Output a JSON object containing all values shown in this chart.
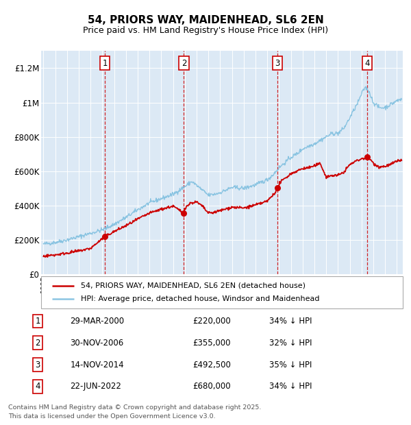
{
  "title": "54, PRIORS WAY, MAIDENHEAD, SL6 2EN",
  "subtitle": "Price paid vs. HM Land Registry's House Price Index (HPI)",
  "background_color": "#dce9f5",
  "hpi_color": "#7fbfdf",
  "price_color": "#cc0000",
  "vline_color": "#cc0000",
  "purchases": [
    {
      "label": "1",
      "date_str": "29-MAR-2000",
      "year": 2000.23,
      "price": 220000,
      "pct": "34% ↓ HPI"
    },
    {
      "label": "2",
      "date_str": "30-NOV-2006",
      "year": 2006.92,
      "price": 355000,
      "pct": "32% ↓ HPI"
    },
    {
      "label": "3",
      "date_str": "14-NOV-2014",
      "year": 2014.87,
      "price": 492500,
      "pct": "35% ↓ HPI"
    },
    {
      "label": "4",
      "date_str": "22-JUN-2022",
      "year": 2022.47,
      "price": 680000,
      "pct": "34% ↓ HPI"
    }
  ],
  "footer1": "Contains HM Land Registry data © Crown copyright and database right 2025.",
  "footer2": "This data is licensed under the Open Government Licence v3.0.",
  "legend_line1": "54, PRIORS WAY, MAIDENHEAD, SL6 2EN (detached house)",
  "legend_line2": "HPI: Average price, detached house, Windsor and Maidenhead",
  "ylim": [
    0,
    1300000
  ],
  "yticks": [
    0,
    200000,
    400000,
    600000,
    800000,
    1000000,
    1200000
  ],
  "ytick_labels": [
    "£0",
    "£200K",
    "£400K",
    "£600K",
    "£800K",
    "£1M",
    "£1.2M"
  ],
  "xmin": 1994.8,
  "xmax": 2025.5,
  "hpi_knots_x": [
    1995,
    1996,
    1997,
    1998,
    1999,
    2000,
    2001,
    2002,
    2003,
    2004,
    2005,
    2006,
    2007,
    2007.6,
    2008.3,
    2009.0,
    2009.5,
    2010,
    2010.5,
    2011,
    2012,
    2013,
    2014,
    2014.5,
    2015,
    2015.5,
    2016,
    2016.5,
    2017,
    2017.5,
    2018,
    2018.5,
    2019,
    2019.5,
    2020,
    2020.5,
    2021,
    2021.3,
    2021.7,
    2022.0,
    2022.3,
    2022.6,
    2023.0,
    2023.5,
    2024.0,
    2024.5,
    2025.0,
    2025.4
  ],
  "hpi_knots_y": [
    175000,
    185000,
    200000,
    218000,
    238000,
    258000,
    290000,
    330000,
    375000,
    415000,
    440000,
    465000,
    510000,
    540000,
    500000,
    460000,
    465000,
    475000,
    490000,
    505000,
    500000,
    520000,
    550000,
    580000,
    620000,
    650000,
    680000,
    700000,
    730000,
    745000,
    760000,
    780000,
    800000,
    820000,
    820000,
    850000,
    910000,
    950000,
    1000000,
    1050000,
    1090000,
    1070000,
    1000000,
    970000,
    970000,
    990000,
    1010000,
    1020000
  ],
  "red_knots_x": [
    1995,
    1996,
    1997,
    1998,
    1999,
    2000.23,
    2000.23,
    2001,
    2002,
    2003,
    2004,
    2005,
    2006,
    2006.92,
    2006.92,
    2007,
    2007.5,
    2008.0,
    2008.5,
    2009.0,
    2009.5,
    2010,
    2010.5,
    2011,
    2012,
    2013,
    2014,
    2014.87,
    2014.87,
    2015,
    2015.5,
    2016,
    2016.5,
    2017,
    2017.5,
    2018,
    2018.5,
    2019,
    2019.5,
    2020,
    2020.5,
    2021,
    2021.5,
    2022.0,
    2022.47,
    2022.47,
    2022.8,
    2023.0,
    2023.5,
    2024.0,
    2024.5,
    2025.0,
    2025.4
  ],
  "red_knots_y": [
    105000,
    112000,
    123000,
    135000,
    150000,
    220000,
    220000,
    248000,
    282000,
    320000,
    355000,
    378000,
    396000,
    355000,
    355000,
    385000,
    415000,
    420000,
    395000,
    355000,
    360000,
    370000,
    380000,
    390000,
    385000,
    402000,
    425000,
    492500,
    492500,
    528000,
    558000,
    585000,
    600000,
    615000,
    620000,
    630000,
    645000,
    565000,
    575000,
    575000,
    595000,
    638000,
    658000,
    672000,
    680000,
    680000,
    665000,
    645000,
    625000,
    628000,
    640000,
    658000,
    665000
  ]
}
